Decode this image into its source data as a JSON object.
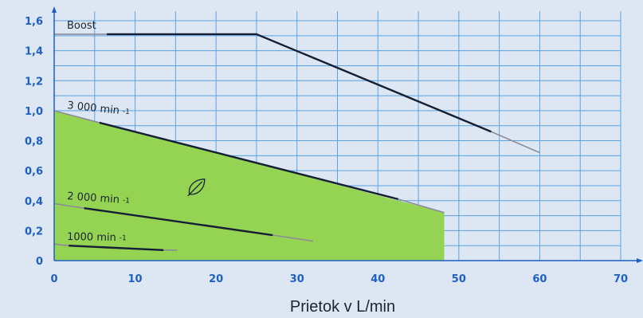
{
  "chart_data": {
    "type": "line",
    "xlabel": "Prietok v L/min",
    "ylabel": "",
    "xlim": [
      0,
      70
    ],
    "ylim": [
      0,
      1.6
    ],
    "x_ticks": [
      "0",
      "10",
      "20",
      "30",
      "40",
      "50",
      "60",
      "70"
    ],
    "y_ticks": [
      "0",
      "0,2",
      "0,4",
      "0,6",
      "0,8",
      "1,0",
      "1,2",
      "1,4",
      "1,6"
    ],
    "grid": true,
    "colors": {
      "background": "#dde7f4",
      "grid": "#5aa2e6",
      "axis": "#1e5fc4",
      "eco_fill": "#94d452",
      "curve_dark": "#141e36",
      "curve_light": "#8c8c96"
    },
    "eco_region": {
      "x": [
        0,
        48.2,
        48.2,
        0
      ],
      "y": [
        1.0,
        0.32,
        0,
        0
      ]
    },
    "series": [
      {
        "name": "Boost",
        "label_parts": {
          "main": "Boost",
          "sup": ""
        },
        "x": [
          0,
          6.5,
          25,
          54,
          60
        ],
        "y": [
          1.51,
          1.51,
          1.51,
          0.86,
          0.72
        ],
        "dark_range": [
          6.5,
          54
        ]
      },
      {
        "name": "3000 min-1",
        "label_parts": {
          "main": "3 000 min",
          "sup": "-1"
        },
        "x": [
          0,
          5.6,
          42.5,
          48.2
        ],
        "y": [
          1.0,
          0.92,
          0.41,
          0.32
        ],
        "dark_range": [
          5.6,
          42.5
        ]
      },
      {
        "name": "2000 min-1",
        "label_parts": {
          "main": "2 000 min",
          "sup": "-1"
        },
        "x": [
          0,
          3.7,
          27,
          32
        ],
        "y": [
          0.38,
          0.35,
          0.17,
          0.13
        ],
        "dark_range": [
          3.7,
          27
        ]
      },
      {
        "name": "1000 min-1",
        "label_parts": {
          "main": "1000 min",
          "sup": "-1"
        },
        "x": [
          0,
          1.8,
          13.5,
          15.2
        ],
        "y": [
          0.11,
          0.1,
          0.07,
          0.07
        ],
        "dark_range": [
          1.8,
          13.5
        ]
      }
    ],
    "annotations": [
      {
        "type": "icon",
        "name": "leaf-icon",
        "x": 17.6,
        "y": 0.49
      }
    ]
  }
}
